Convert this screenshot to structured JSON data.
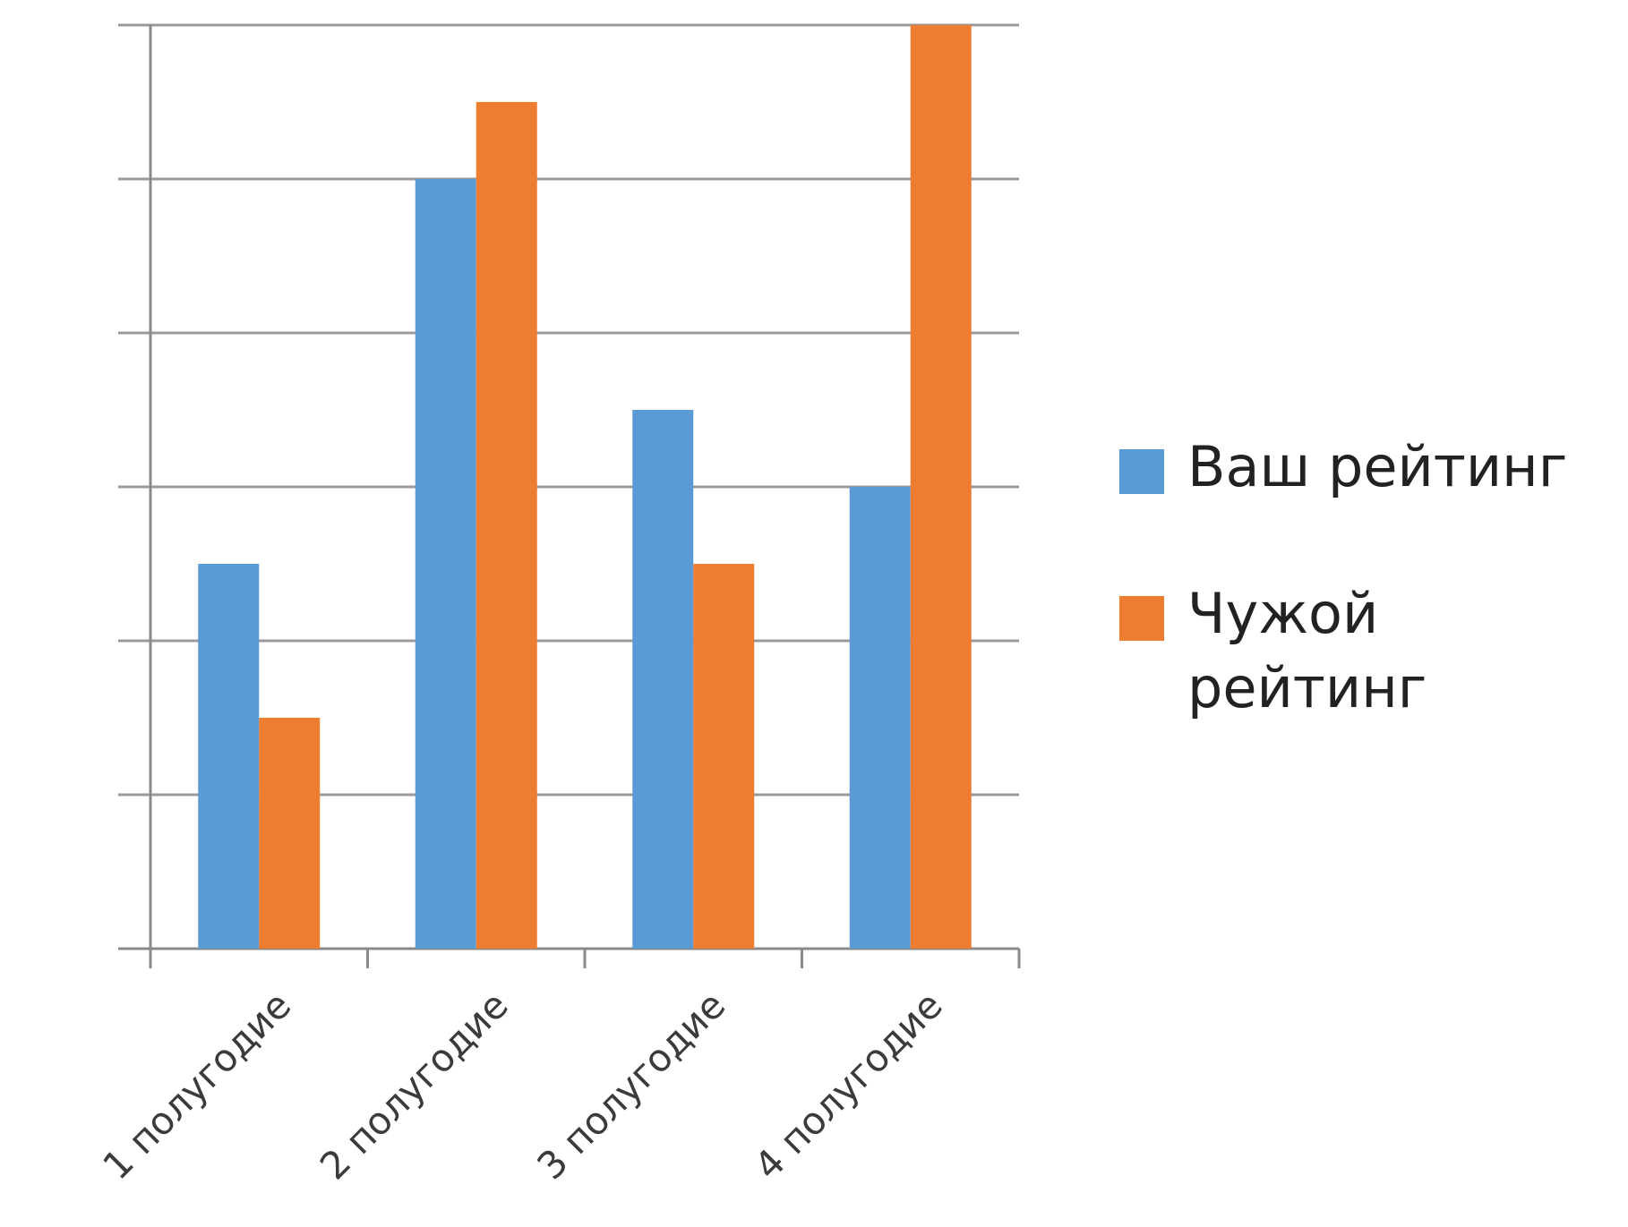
{
  "chart_data": {
    "type": "bar",
    "categories": [
      "1 полугодие",
      "2 полугодие",
      "3 полугодие",
      "4 полугодие"
    ],
    "series": [
      {
        "name": "Ваш рейтинг",
        "values": [
          2.5,
          5,
          3.5,
          3
        ],
        "color": "#5b9bd5"
      },
      {
        "name": "Чужой рейтинг",
        "values": [
          1.5,
          5.5,
          2.5,
          6
        ],
        "color": "#ed7d31"
      }
    ],
    "ylim": [
      0,
      6
    ],
    "y_tick_step": 1,
    "y_tick_labels_visible": false,
    "grid": true,
    "legend_position": "right",
    "x_label_rotation": -45,
    "title": "",
    "xlabel": "",
    "ylabel": ""
  }
}
